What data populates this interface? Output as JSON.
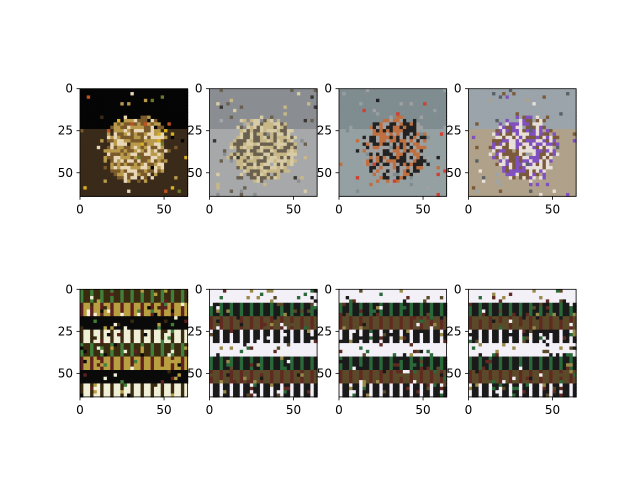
{
  "figure": {
    "background": "#ffffff",
    "axis_color": "#000000"
  },
  "chart_data": [
    {
      "type": "heatmap",
      "content": "food platter with sandwiches, egg, pickles",
      "row": 0,
      "col": 0,
      "xlim": [
        0,
        64
      ],
      "ylim": [
        64,
        0
      ],
      "xticks": [
        "0",
        "50"
      ],
      "yticks": [
        "0",
        "25",
        "50"
      ],
      "palette": [
        "#050505",
        "#3a2a1a",
        "#7a5a2a",
        "#b89a4a",
        "#e8d8b8",
        "#c05020",
        "#d8b020",
        "#6a7a2a"
      ]
    },
    {
      "type": "heatmap",
      "content": "two polar bears on pavement",
      "row": 0,
      "col": 1,
      "xlim": [
        0,
        64
      ],
      "ylim": [
        64,
        0
      ],
      "xticks": [
        "0",
        "50"
      ],
      "yticks": [],
      "palette": [
        "#8a8e92",
        "#a7a8aa",
        "#d8cca6",
        "#c8b888",
        "#6a6050",
        "#3a3632"
      ]
    },
    {
      "type": "heatmap",
      "content": "black dog held above grey spotted dog",
      "row": 0,
      "col": 2,
      "xlim": [
        0,
        64
      ],
      "ylim": [
        64,
        0
      ],
      "xticks": [
        "0",
        "50"
      ],
      "yticks": [],
      "palette": [
        "#7f8c90",
        "#95a0a3",
        "#222222",
        "#c07040",
        "#a0a0a0",
        "#d04030"
      ]
    },
    {
      "type": "heatmap",
      "content": "husky dog with purple toy",
      "row": 0,
      "col": 3,
      "xlim": [
        0,
        64
      ],
      "ylim": [
        64,
        0
      ],
      "xticks": [
        "0",
        "50"
      ],
      "yticks": [],
      "palette": [
        "#9aa4aa",
        "#b0a28a",
        "#7a5a3a",
        "#e8e0d8",
        "#8050c0",
        "#5a6064"
      ]
    },
    {
      "type": "heatmap",
      "content": "reconstruction with horizontal bands",
      "row": 1,
      "col": 0,
      "xlim": [
        0,
        64
      ],
      "ylim": [
        64,
        0
      ],
      "xticks": [
        "0",
        "50"
      ],
      "yticks": [
        "0",
        "25",
        "50"
      ],
      "palette": [
        "#0a0a0a",
        "#3a2a10",
        "#b8a040",
        "#f0f0d8",
        "#40803a",
        "#602020"
      ]
    },
    {
      "type": "heatmap",
      "content": "reconstruction with horizontal bands",
      "row": 1,
      "col": 1,
      "xlim": [
        0,
        64
      ],
      "ylim": [
        64,
        0
      ],
      "xticks": [
        "0",
        "50"
      ],
      "yticks": [],
      "palette": [
        "#f4f0f8",
        "#1a1a1a",
        "#5a4a2a",
        "#9a8a4a",
        "#2a6a3a",
        "#602a20"
      ]
    },
    {
      "type": "heatmap",
      "content": "reconstruction with horizontal bands",
      "row": 1,
      "col": 2,
      "xlim": [
        0,
        64
      ],
      "ylim": [
        64,
        0
      ],
      "xticks": [
        "0",
        "50"
      ],
      "yticks": [],
      "palette": [
        "#f4f0f8",
        "#1a1a1a",
        "#5a4a2a",
        "#9a8a4a",
        "#2a6a3a",
        "#602a20"
      ]
    },
    {
      "type": "heatmap",
      "content": "reconstruction with horizontal bands",
      "row": 1,
      "col": 3,
      "xlim": [
        0,
        64
      ],
      "ylim": [
        64,
        0
      ],
      "xticks": [
        "0",
        "50"
      ],
      "yticks": [],
      "palette": [
        "#f4f0f8",
        "#1a1a1a",
        "#5a4a2a",
        "#9a8a4a",
        "#2a6a3a",
        "#602a20"
      ]
    }
  ]
}
